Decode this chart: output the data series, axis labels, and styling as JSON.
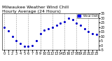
{
  "title": "Milwaukee Weather Wind Chill",
  "subtitle": "Hourly Average (24 Hours)",
  "hours": [
    0,
    1,
    2,
    3,
    4,
    5,
    6,
    7,
    8,
    9,
    10,
    11,
    12,
    13,
    14,
    15,
    16,
    17,
    18,
    19,
    20,
    21,
    22,
    23
  ],
  "wind_chill": [
    20,
    16,
    10,
    5,
    2,
    -1,
    -1,
    0,
    5,
    13,
    17,
    18,
    20,
    22,
    24,
    26,
    30,
    28,
    24,
    22,
    18,
    15,
    13,
    12
  ],
  "line_color": "#0000cc",
  "grid_color": "#999999",
  "bg_color": "#ffffff",
  "ylim": [
    -5,
    35
  ],
  "xlim": [
    -0.5,
    23.5
  ],
  "ytick_values": [
    -5,
    0,
    5,
    10,
    15,
    20,
    25,
    30,
    35
  ],
  "ytick_labels": [
    "-5",
    "0",
    "5",
    "10",
    "15",
    "20",
    "25",
    "30",
    "35"
  ],
  "xtick_positions": [
    0,
    1,
    2,
    3,
    4,
    5,
    6,
    7,
    8,
    9,
    10,
    11,
    12,
    13,
    14,
    15,
    16,
    17,
    18,
    19,
    20,
    21,
    22,
    23
  ],
  "legend_label": "Wind Chill",
  "legend_bg": "#0000ff",
  "title_fontsize": 4.5,
  "tick_fontsize": 3.5,
  "fig_bg": "#ffffff",
  "grid_positions": [
    0,
    3,
    6,
    9,
    12,
    15,
    18,
    21
  ]
}
